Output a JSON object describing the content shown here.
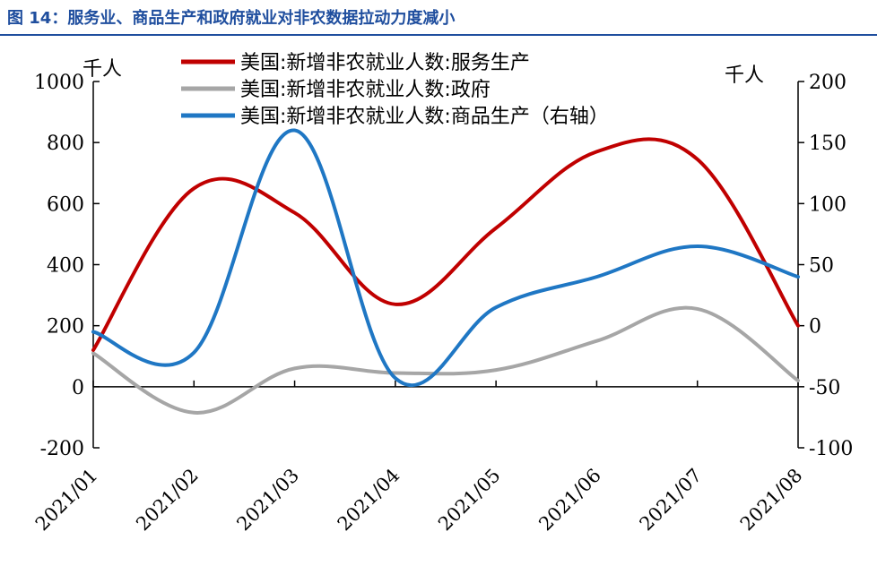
{
  "title": "图 14：服务业、商品生产和政府就业对非农数据拉动力度减小",
  "chart_data": {
    "type": "line",
    "categories": [
      "2021/01",
      "2021/02",
      "2021/03",
      "2021/04",
      "2021/05",
      "2021/06",
      "2021/07",
      "2021/08"
    ],
    "left_axis": {
      "unit": "千人",
      "ylim": [
        -200,
        1000
      ],
      "ticks": [
        -200,
        0,
        200,
        400,
        600,
        800,
        1000
      ]
    },
    "right_axis": {
      "unit": "千人",
      "ylim": [
        -100,
        200
      ],
      "ticks": [
        -100,
        -50,
        0,
        50,
        100,
        150,
        200
      ]
    },
    "series": [
      {
        "name": "美国:新增非农就业人数:服务生产",
        "axis": "left",
        "color": "#c00000",
        "values": [
          120,
          650,
          570,
          270,
          520,
          770,
          745,
          200
        ]
      },
      {
        "name": "美国:新增非农就业人数:政府",
        "axis": "left",
        "color": "#a6a6a6",
        "values": [
          110,
          -85,
          60,
          45,
          55,
          150,
          255,
          20
        ]
      },
      {
        "name": "美国:新增非农就业人数:商品生产（右轴）",
        "axis": "right",
        "color": "#1f77c4",
        "values": [
          -5,
          -22,
          160,
          -43,
          15,
          40,
          65,
          40
        ]
      }
    ],
    "legend_position": "top-center",
    "grid": false
  }
}
